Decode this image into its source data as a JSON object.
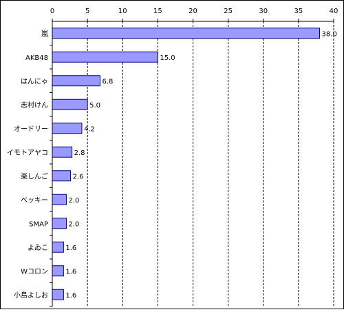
{
  "chart_data": {
    "type": "bar",
    "orientation": "horizontal",
    "categories": [
      "嵐",
      "AKB48",
      "はんにゃ",
      "志村けん",
      "オードリー",
      "イモトアヤコ",
      "楽しんご",
      "ベッキー",
      "SMAP",
      "よゐこ",
      "Wコロン",
      "小島よしお"
    ],
    "values": [
      38.0,
      15.0,
      6.8,
      5.0,
      4.2,
      2.8,
      2.6,
      2.0,
      2.0,
      1.6,
      1.6,
      1.6
    ],
    "value_labels": [
      "38.0",
      "15.0",
      "6.8",
      "5.0",
      "4.2",
      "2.8",
      "2.6",
      "2.0",
      "2.0",
      "1.6",
      "1.6",
      "1.6"
    ],
    "x_ticks": [
      0,
      5,
      10,
      15,
      20,
      25,
      30,
      35,
      40
    ],
    "x_tick_labels": [
      "0",
      "5",
      "10",
      "15",
      "20",
      "25",
      "30",
      "35",
      "40"
    ],
    "xlim": [
      0,
      40
    ],
    "x_axis_position": "top",
    "grid": "vertical dashed",
    "title": "",
    "xlabel": "",
    "ylabel": "",
    "colors": {
      "bar_fill": "#9999ff",
      "bar_stroke": "#000080",
      "grid": "#000000",
      "axis": "#000000"
    }
  }
}
